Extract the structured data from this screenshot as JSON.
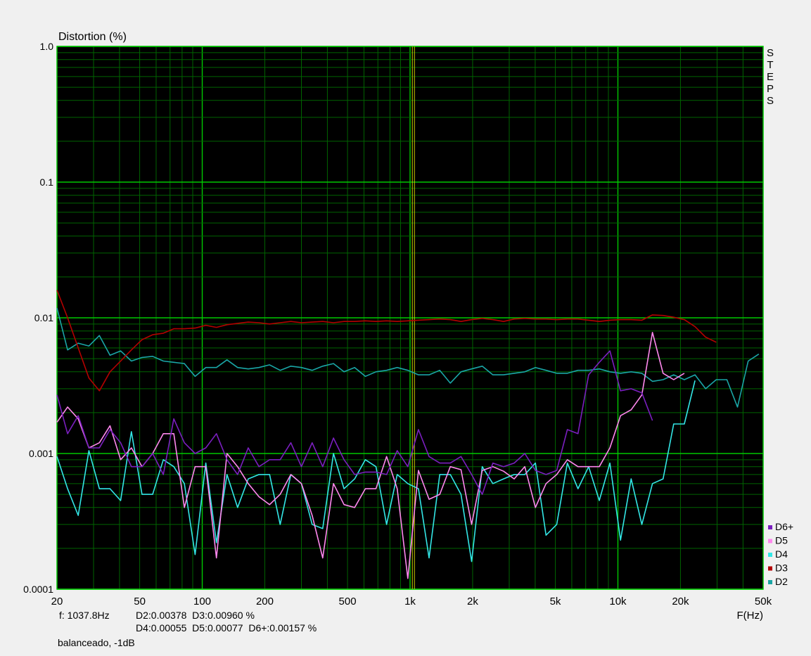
{
  "colors": {
    "plot_bg": "#000000",
    "grid_major": "#00c800",
    "grid_minor": "#006400",
    "cursor": "#c8c800",
    "D6+": "#7a1fbf",
    "D5": "#ff88ee",
    "D4": "#33e6e6",
    "D3": "#b40000",
    "D2": "#1aa6a6"
  },
  "chart_data": {
    "type": "line",
    "ylabel": "Distortion (%)",
    "xlabel": "F(Hz)",
    "xscale": "log",
    "yscale": "log",
    "xlim": [
      20,
      50000
    ],
    "ylim": [
      0.0001,
      1.0
    ],
    "grid": true,
    "legend_position": "bottom-right",
    "x_ticks": [
      {
        "value": 20,
        "label": "20"
      },
      {
        "value": 50,
        "label": "50"
      },
      {
        "value": 100,
        "label": "100"
      },
      {
        "value": 200,
        "label": "200"
      },
      {
        "value": 500,
        "label": "500"
      },
      {
        "value": 1000,
        "label": "1k"
      },
      {
        "value": 2000,
        "label": "2k"
      },
      {
        "value": 5000,
        "label": "5k"
      },
      {
        "value": 10000,
        "label": "10k"
      },
      {
        "value": 20000,
        "label": "20k"
      },
      {
        "value": 50000,
        "label": "50k"
      }
    ],
    "y_ticks": [
      {
        "value": 1.0,
        "label": "1.0"
      },
      {
        "value": 0.1,
        "label": "0.1"
      },
      {
        "value": 0.01,
        "label": "0.01"
      },
      {
        "value": 0.001,
        "label": "0.001"
      },
      {
        "value": 0.0001,
        "label": "0.0001"
      }
    ],
    "cursor_x": 1037.8,
    "side_label_letters": [
      "S",
      "T",
      "E",
      "P",
      "S"
    ],
    "readout": {
      "freq": "f: 1037.8Hz",
      "line1": "D2:0.00378  D3:0.00960 %",
      "line2": "D4:0.00055  D5:0.00077  D6+:0.00157 %"
    },
    "caption": "balanceado, -1dB",
    "series": [
      {
        "name": "D2",
        "x": [
          20,
          22.5,
          25.3,
          28.5,
          32,
          36,
          40.5,
          45.6,
          51.3,
          57.7,
          65,
          73,
          82,
          92.4,
          104,
          117,
          131.5,
          148,
          166.5,
          187.5,
          211,
          237,
          267,
          300,
          338,
          380,
          428,
          481,
          541,
          609,
          685,
          771,
          867,
          975,
          1097,
          1234,
          1389,
          1562,
          1758,
          1978,
          2225,
          2503,
          2816,
          3168,
          3565,
          4011,
          4512,
          5077,
          5712,
          6426,
          7230,
          8134,
          9151,
          10296,
          11583,
          13032,
          14662,
          16495,
          18558,
          20879,
          23490,
          26428,
          29733,
          33452,
          37636,
          42343,
          47639
        ],
        "y": [
          0.0118,
          0.0058,
          0.0065,
          0.0062,
          0.0074,
          0.0053,
          0.0057,
          0.0048,
          0.0051,
          0.0052,
          0.0048,
          0.0047,
          0.0046,
          0.0037,
          0.0043,
          0.0043,
          0.0049,
          0.0043,
          0.0042,
          0.0043,
          0.0045,
          0.0041,
          0.0044,
          0.0043,
          0.0041,
          0.0044,
          0.0046,
          0.004,
          0.0043,
          0.0037,
          0.004,
          0.0041,
          0.0043,
          0.0041,
          0.0038,
          0.0038,
          0.0041,
          0.0033,
          0.004,
          0.0042,
          0.0044,
          0.0038,
          0.0038,
          0.0039,
          0.004,
          0.0043,
          0.0041,
          0.0039,
          0.0039,
          0.0041,
          0.0041,
          0.0042,
          0.004,
          0.0039,
          0.004,
          0.0039,
          0.0034,
          0.0035,
          0.0038,
          0.0035,
          0.0038,
          0.003,
          0.0035,
          0.0035,
          0.0022,
          0.0048,
          0.0054
        ]
      },
      {
        "name": "D3",
        "x": [
          20,
          22.5,
          25.3,
          28.5,
          32,
          36,
          40.5,
          45.6,
          51.3,
          57.7,
          65,
          73,
          82,
          92.4,
          104,
          117,
          131.5,
          148,
          166.5,
          187.5,
          211,
          237,
          267,
          300,
          338,
          380,
          428,
          481,
          541,
          609,
          685,
          771,
          867,
          975,
          1097,
          1234,
          1389,
          1562,
          1758,
          1978,
          2225,
          2503,
          2816,
          3168,
          3565,
          4011,
          4512,
          5077,
          5712,
          6426,
          7230,
          8134,
          9151,
          10296,
          11583,
          13032,
          14662,
          16495,
          18558,
          20879,
          23490,
          26428,
          29733
        ],
        "y": [
          0.016,
          0.01,
          0.006,
          0.0036,
          0.0029,
          0.004,
          0.0048,
          0.0058,
          0.0069,
          0.0075,
          0.0077,
          0.0083,
          0.0083,
          0.0084,
          0.0088,
          0.0085,
          0.0089,
          0.0091,
          0.0093,
          0.0092,
          0.009,
          0.0092,
          0.0094,
          0.0092,
          0.0093,
          0.0094,
          0.0092,
          0.0094,
          0.0094,
          0.0095,
          0.0094,
          0.0095,
          0.0094,
          0.0095,
          0.0096,
          0.0097,
          0.0098,
          0.0097,
          0.0094,
          0.0097,
          0.0099,
          0.0097,
          0.0094,
          0.0098,
          0.0099,
          0.0098,
          0.0098,
          0.0097,
          0.0098,
          0.0098,
          0.0096,
          0.0094,
          0.0096,
          0.0097,
          0.0097,
          0.0096,
          0.0105,
          0.0104,
          0.0101,
          0.0097,
          0.0086,
          0.0072,
          0.0066
        ]
      },
      {
        "name": "D4",
        "x": [
          20,
          22.5,
          25.3,
          28.5,
          32,
          36,
          40.5,
          45.6,
          51.3,
          57.7,
          65,
          73,
          82,
          92.4,
          104,
          117,
          131.5,
          148,
          166.5,
          187.5,
          211,
          237,
          267,
          300,
          338,
          380,
          428,
          481,
          541,
          609,
          685,
          771,
          867,
          975,
          1097,
          1234,
          1389,
          1562,
          1758,
          1978,
          2225,
          2503,
          2816,
          3168,
          3565,
          4011,
          4512,
          5077,
          5712,
          6426,
          7230,
          8134,
          9151,
          10296,
          11583,
          13032,
          14662,
          16495,
          18558,
          20879,
          23490
        ],
        "y": [
          0.00095,
          0.00055,
          0.00035,
          0.00105,
          0.00055,
          0.00055,
          0.00045,
          0.00145,
          0.0005,
          0.0005,
          0.0009,
          0.0008,
          0.0006,
          0.00018,
          0.00085,
          0.00022,
          0.0007,
          0.0004,
          0.00065,
          0.0007,
          0.0007,
          0.0003,
          0.0007,
          0.0006,
          0.0003,
          0.00028,
          0.001,
          0.00055,
          0.00065,
          0.0009,
          0.0008,
          0.0003,
          0.0007,
          0.0006,
          0.00055,
          0.00017,
          0.0007,
          0.0007,
          0.0005,
          0.00016,
          0.0008,
          0.0006,
          0.00065,
          0.0007,
          0.0007,
          0.00085,
          0.00025,
          0.0003,
          0.00085,
          0.00055,
          0.0008,
          0.00045,
          0.00085,
          0.00023,
          0.00065,
          0.0003,
          0.0006,
          0.00065,
          0.00165,
          0.00165,
          0.00345
        ]
      },
      {
        "name": "D5",
        "x": [
          20,
          22.5,
          25.3,
          28.5,
          32,
          36,
          40.5,
          45.6,
          51.3,
          57.7,
          65,
          73,
          82,
          92.4,
          104,
          117,
          131.5,
          148,
          166.5,
          187.5,
          211,
          237,
          267,
          300,
          338,
          380,
          428,
          481,
          541,
          609,
          685,
          771,
          867,
          975,
          1097,
          1234,
          1389,
          1562,
          1758,
          1978,
          2225,
          2503,
          2816,
          3168,
          3565,
          4011,
          4512,
          5077,
          5712,
          6426,
          7230,
          8134,
          9151,
          10296,
          11583,
          13032,
          14662,
          16495,
          18558,
          20879
        ],
        "y": [
          0.0017,
          0.0022,
          0.0018,
          0.0011,
          0.0012,
          0.0016,
          0.0009,
          0.0011,
          0.0008,
          0.001,
          0.0014,
          0.0014,
          0.0004,
          0.0008,
          0.0008,
          0.00017,
          0.001,
          0.0008,
          0.0006,
          0.00048,
          0.00042,
          0.0005,
          0.0007,
          0.0006,
          0.00035,
          0.00017,
          0.0006,
          0.00042,
          0.0004,
          0.00055,
          0.00055,
          0.00095,
          0.00055,
          0.00012,
          0.00075,
          0.00046,
          0.0005,
          0.0008,
          0.00076,
          0.0003,
          0.00075,
          0.0008,
          0.00074,
          0.00065,
          0.0008,
          0.0004,
          0.0006,
          0.0007,
          0.0009,
          0.0008,
          0.0008,
          0.0008,
          0.0011,
          0.0019,
          0.0021,
          0.0027,
          0.0078,
          0.0039,
          0.0035,
          0.0039
        ]
      },
      {
        "name": "D6+",
        "x": [
          20,
          22.5,
          25.3,
          28.5,
          32,
          36,
          40.5,
          45.6,
          51.3,
          57.7,
          65,
          73,
          82,
          92.4,
          104,
          117,
          131.5,
          148,
          166.5,
          187.5,
          211,
          237,
          267,
          300,
          338,
          380,
          428,
          481,
          541,
          609,
          685,
          771,
          867,
          975,
          1097,
          1234,
          1389,
          1562,
          1758,
          1978,
          2225,
          2503,
          2816,
          3168,
          3565,
          4011,
          4512,
          5077,
          5712,
          6426,
          7230,
          8134,
          9151,
          10296,
          11583,
          13032,
          14662
        ],
        "y": [
          0.0027,
          0.0014,
          0.0019,
          0.0011,
          0.0011,
          0.0015,
          0.0012,
          0.0008,
          0.0008,
          0.001,
          0.0007,
          0.0018,
          0.0012,
          0.001,
          0.0011,
          0.0014,
          0.0009,
          0.0007,
          0.0011,
          0.0008,
          0.0009,
          0.0009,
          0.0012,
          0.0008,
          0.0012,
          0.0008,
          0.0013,
          0.0009,
          0.0007,
          0.00073,
          0.00073,
          0.0007,
          0.00105,
          0.0008,
          0.0015,
          0.00095,
          0.00085,
          0.00085,
          0.00095,
          0.0007,
          0.0005,
          0.00085,
          0.0008,
          0.00085,
          0.001,
          0.00075,
          0.0007,
          0.00075,
          0.0015,
          0.0014,
          0.0038,
          0.0047,
          0.0057,
          0.0029,
          0.003,
          0.0028,
          0.00175
        ]
      }
    ]
  }
}
